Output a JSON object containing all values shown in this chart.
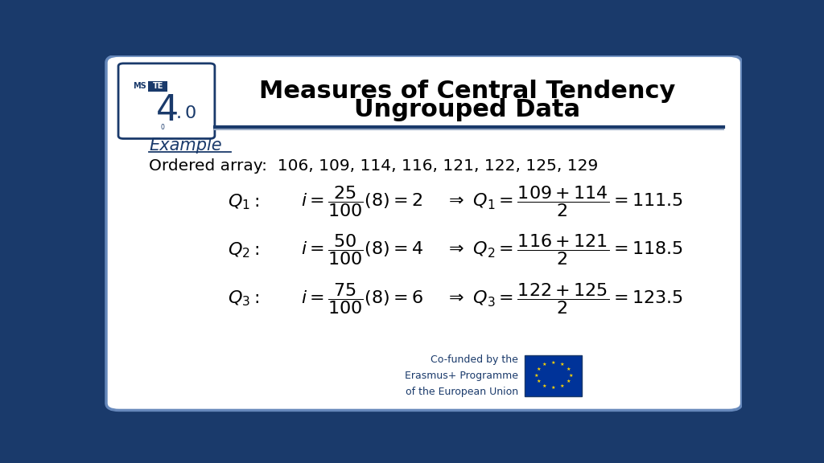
{
  "title_line1": "Measures of Central Tendency",
  "title_line2": "Ungrouped Data",
  "title_color": "#000000",
  "title_fontsize": 22,
  "bg_outer": "#1a3a6b",
  "bg_inner": "#ffffff",
  "example_label": "Example",
  "ordered_array_text": "Ordered array:  106, 109, 114, 116, 121, 122, 125, 129",
  "formula_color": "#000000",
  "formula_fontsize": 18,
  "header_line_color": "#1a3a6b",
  "erasmus_text": "Co-funded by the\nErasmus+ Programme\nof the European Union",
  "erasmus_color": "#1a3a6b",
  "erasmus_fontsize": 9
}
